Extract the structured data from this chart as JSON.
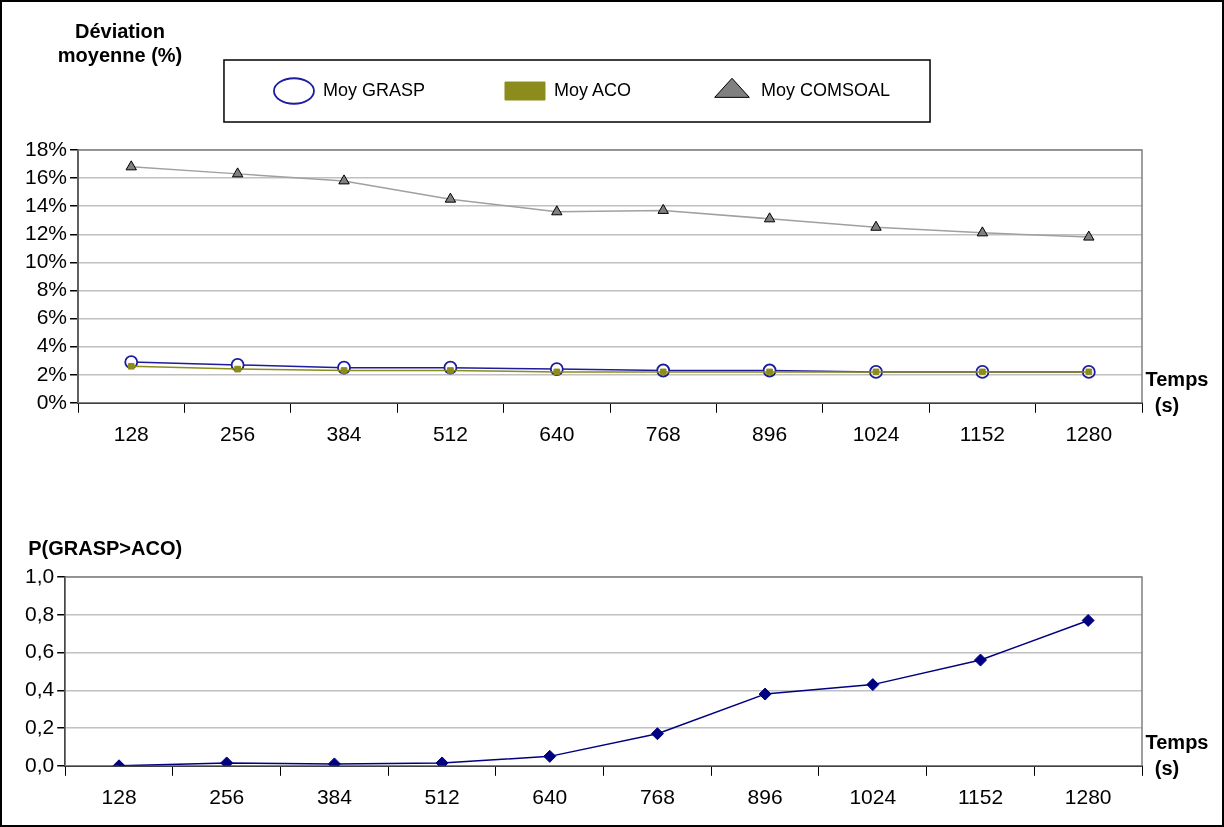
{
  "chart_data": [
    {
      "type": "line",
      "ylabel": "Déviation moyenne (%)",
      "xlabel": "Temps (s)",
      "categories": [
        "128",
        "256",
        "384",
        "512",
        "640",
        "768",
        "896",
        "1024",
        "1152",
        "1280"
      ],
      "series": [
        {
          "name": "Moy GRASP",
          "color": "#1c1c9c",
          "marker": "circle",
          "values": [
            2.9,
            2.7,
            2.5,
            2.5,
            2.4,
            2.3,
            2.3,
            2.2,
            2.2,
            2.2
          ]
        },
        {
          "name": "Moy ACO",
          "color": "#8c8c1c",
          "marker": "square",
          "values": [
            2.6,
            2.4,
            2.3,
            2.3,
            2.2,
            2.2,
            2.2,
            2.2,
            2.2,
            2.2
          ]
        },
        {
          "name": "Moy COMSOAL",
          "color": "#a0a0a0",
          "marker": "triangle",
          "values": [
            16.8,
            16.3,
            15.8,
            14.5,
            13.6,
            13.7,
            13.1,
            12.5,
            12.1,
            11.8
          ]
        }
      ],
      "ylim": [
        0,
        18
      ],
      "yticks": [
        {
          "value": 0,
          "label": "0%"
        },
        {
          "value": 2,
          "label": "2%"
        },
        {
          "value": 4,
          "label": "4%"
        },
        {
          "value": 6,
          "label": "6%"
        },
        {
          "value": 8,
          "label": "8%"
        },
        {
          "value": 10,
          "label": "10%"
        },
        {
          "value": 12,
          "label": "12%"
        },
        {
          "value": 14,
          "label": "14%"
        },
        {
          "value": 16,
          "label": "16%"
        },
        {
          "value": 18,
          "label": "18%"
        }
      ],
      "grid": "y",
      "legend": "top"
    },
    {
      "type": "line",
      "ylabel": "P(GRASP>ACO)",
      "xlabel": "Temps (s)",
      "categories": [
        "128",
        "256",
        "384",
        "512",
        "640",
        "768",
        "896",
        "1024",
        "1152",
        "1280"
      ],
      "values": [
        0,
        0.015,
        0.01,
        0.015,
        0.05,
        0.17,
        0.38,
        0.43,
        0.56,
        0.77
      ],
      "color": "#000080",
      "marker": "diamond",
      "ylim": [
        0,
        1
      ],
      "yticks": [
        {
          "value": 0,
          "label": "0,0"
        },
        {
          "value": 0.2,
          "label": "0,2"
        },
        {
          "value": 0.4,
          "label": "0,4"
        },
        {
          "value": 0.6,
          "label": "0,6"
        },
        {
          "value": 0.8,
          "label": "0,8"
        },
        {
          "value": 1,
          "label": "1,0"
        }
      ],
      "grid": "y"
    }
  ]
}
